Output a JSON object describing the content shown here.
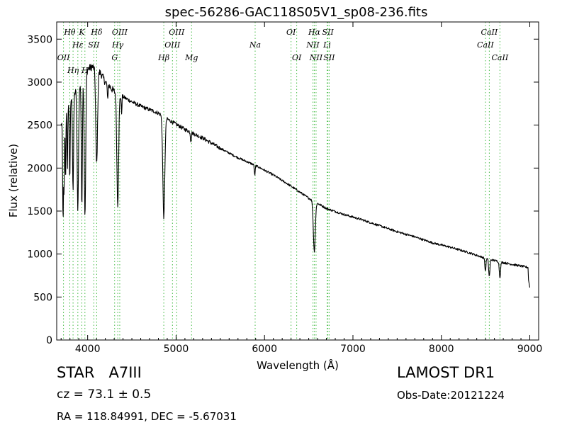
{
  "chart_data": {
    "type": "line",
    "title": "spec-56286-GAC118S05V1_sp08-236.fits",
    "xlabel": "Wavelength (Å)",
    "ylabel": "Flux (relative)",
    "xlim": [
      3650,
      9100
    ],
    "ylim": [
      0,
      3700
    ],
    "xticks": [
      4000,
      5000,
      6000,
      7000,
      8000,
      9000
    ],
    "yticks": [
      0,
      500,
      1000,
      1500,
      2000,
      2500,
      3000,
      3500
    ],
    "grid": false,
    "line_color": "#000000",
    "marker_color": "#44bb44",
    "continuum": [
      [
        3700,
        2500
      ],
      [
        3750,
        2700
      ],
      [
        3800,
        2780
      ],
      [
        3850,
        2870
      ],
      [
        3900,
        2950
      ],
      [
        3950,
        3050
      ],
      [
        4000,
        3150
      ],
      [
        4050,
        3180
      ],
      [
        4100,
        3150
      ],
      [
        4150,
        3100
      ],
      [
        4200,
        3000
      ],
      [
        4250,
        2950
      ],
      [
        4300,
        2890
      ],
      [
        4400,
        2830
      ],
      [
        4500,
        2770
      ],
      [
        4600,
        2720
      ],
      [
        4700,
        2680
      ],
      [
        4800,
        2640
      ],
      [
        4900,
        2570
      ],
      [
        5000,
        2510
      ],
      [
        5100,
        2450
      ],
      [
        5200,
        2400
      ],
      [
        5300,
        2350
      ],
      [
        5500,
        2230
      ],
      [
        5700,
        2120
      ],
      [
        5900,
        2030
      ],
      [
        6100,
        1920
      ],
      [
        6300,
        1790
      ],
      [
        6500,
        1650
      ],
      [
        6700,
        1530
      ],
      [
        6900,
        1460
      ],
      [
        7100,
        1400
      ],
      [
        7300,
        1330
      ],
      [
        7500,
        1260
      ],
      [
        7700,
        1200
      ],
      [
        7900,
        1130
      ],
      [
        8100,
        1080
      ],
      [
        8300,
        1020
      ],
      [
        8500,
        950
      ],
      [
        8700,
        900
      ],
      [
        8800,
        880
      ],
      [
        8900,
        860
      ],
      [
        9000,
        840
      ]
    ],
    "absorption_lines": [
      {
        "center": 3722,
        "depth": 1180,
        "width": 5
      },
      {
        "center": 3734,
        "depth": 900,
        "width": 4
      },
      {
        "center": 3750,
        "depth": 850,
        "width": 4
      },
      {
        "center": 3771,
        "depth": 800,
        "width": 4
      },
      {
        "center": 3798,
        "depth": 900,
        "width": 5
      },
      {
        "center": 3835,
        "depth": 1100,
        "width": 6
      },
      {
        "center": 3889,
        "depth": 1400,
        "width": 8
      },
      {
        "center": 3934,
        "depth": 1450,
        "width": 6
      },
      {
        "center": 3970,
        "depth": 1650,
        "width": 8
      },
      {
        "center": 4102,
        "depth": 1100,
        "width": 10
      },
      {
        "center": 4226,
        "depth": 200,
        "width": 4
      },
      {
        "center": 4340,
        "depth": 1280,
        "width": 10
      },
      {
        "center": 4383,
        "depth": 200,
        "width": 4
      },
      {
        "center": 4861,
        "depth": 1170,
        "width": 11
      },
      {
        "center": 5167,
        "depth": 100,
        "width": 5
      },
      {
        "center": 5890,
        "depth": 120,
        "width": 5
      },
      {
        "center": 6563,
        "depth": 580,
        "width": 11
      },
      {
        "center": 8498,
        "depth": 150,
        "width": 6
      },
      {
        "center": 8542,
        "depth": 200,
        "width": 7
      },
      {
        "center": 8662,
        "depth": 180,
        "width": 7
      }
    ],
    "end_points": [
      [
        8985,
        700
      ],
      [
        9000,
        610
      ]
    ],
    "markers": [
      {
        "label": "OII",
        "x": 3727,
        "row": 2
      },
      {
        "label": "Hθ",
        "x": 3798,
        "row": 0
      },
      {
        "label": "Hη",
        "x": 3835,
        "row": 3
      },
      {
        "label": "Hε",
        "x": 3889,
        "row": 1
      },
      {
        "label": "K",
        "x": 3934,
        "row": 0
      },
      {
        "label": "H",
        "x": 3969,
        "row": 3
      },
      {
        "label": "SII",
        "x": 4070,
        "row": 1
      },
      {
        "label": "Hδ",
        "x": 4102,
        "row": 0
      },
      {
        "label": "OIII",
        "x": 4363,
        "row": 0
      },
      {
        "label": "Hγ",
        "x": 4340,
        "row": 1
      },
      {
        "label": "G",
        "x": 4305,
        "row": 2
      },
      {
        "label": "OIII",
        "x": 5007,
        "row": 0
      },
      {
        "label": "OIII",
        "x": 4959,
        "row": 1
      },
      {
        "label": "Hβ",
        "x": 4861,
        "row": 2
      },
      {
        "label": "Mg",
        "x": 5175,
        "row": 2
      },
      {
        "label": "Na",
        "x": 5894,
        "row": 1
      },
      {
        "label": "OI",
        "x": 6300,
        "row": 0
      },
      {
        "label": "OI",
        "x": 6364,
        "row": 2
      },
      {
        "label": "Hα",
        "x": 6563,
        "row": 0
      },
      {
        "label": "NII",
        "x": 6548,
        "row": 1
      },
      {
        "label": "NII",
        "x": 6583,
        "row": 2
      },
      {
        "label": "SII",
        "x": 6717,
        "row": 0
      },
      {
        "label": "Li",
        "x": 6708,
        "row": 1
      },
      {
        "label": "SII",
        "x": 6731,
        "row": 2
      },
      {
        "label": "CaII",
        "x": 8542,
        "row": 0
      },
      {
        "label": "CaII",
        "x": 8498,
        "row": 1
      },
      {
        "label": "CaII",
        "x": 8662,
        "row": 2
      }
    ]
  },
  "info": {
    "class_label": "STAR",
    "subclass": "A7III",
    "cz": "cz = 73.1  ± 0.5",
    "coords": "RA = 118.84991, DEC = -5.67031",
    "survey": "LAMOST DR1",
    "obs_date": "Obs-Date:20121224"
  }
}
